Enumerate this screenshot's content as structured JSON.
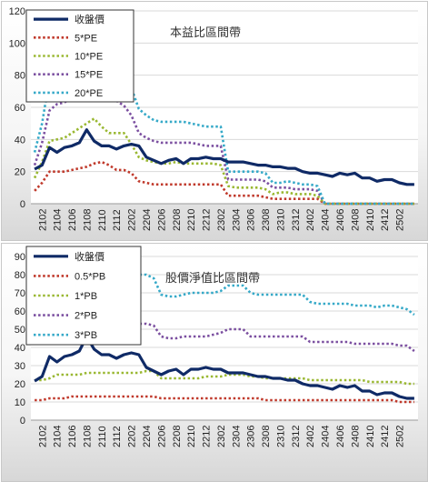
{
  "chart_data": [
    {
      "type": "line",
      "title": "本益比區間帶",
      "xlabel": "",
      "ylabel": "",
      "ylim": [
        0,
        120
      ],
      "yticks": [
        0,
        20,
        40,
        60,
        80,
        100,
        120
      ],
      "grid": true,
      "legend": "top-left",
      "x": [
        "2101",
        "2102",
        "2103",
        "2104",
        "2105",
        "2106",
        "2107",
        "2108",
        "2109",
        "2110",
        "2111",
        "2112",
        "2201",
        "2202",
        "2203",
        "2204",
        "2205",
        "2206",
        "2207",
        "2208",
        "2209",
        "2210",
        "2211",
        "2212",
        "2301",
        "2302",
        "2303",
        "2304",
        "2305",
        "2306",
        "2307",
        "2308",
        "2309",
        "2310",
        "2311",
        "2312",
        "2401",
        "2402",
        "2403",
        "2404",
        "2405",
        "2406",
        "2407",
        "2408",
        "2409",
        "2410",
        "2411",
        "2412",
        "2501",
        "2502",
        "2503",
        "2504"
      ],
      "xticks": [
        "2102",
        "2104",
        "2106",
        "2108",
        "2110",
        "2112",
        "2202",
        "2204",
        "2206",
        "2208",
        "2210",
        "2212",
        "2302",
        "2304",
        "2306",
        "2308",
        "2310",
        "2312",
        "2402",
        "2404",
        "2406",
        "2408",
        "2410",
        "2412",
        "2502"
      ],
      "series": [
        {
          "name": "收盤價",
          "color": "#0f2a66",
          "style": "solid",
          "values": [
            21.5,
            24,
            35,
            32,
            35,
            36,
            38,
            46,
            39,
            36,
            36,
            34,
            36,
            37,
            36,
            29,
            27,
            25,
            27,
            28,
            25,
            28,
            28,
            29,
            28,
            28,
            26,
            26,
            26,
            25,
            24,
            24,
            23,
            23,
            22,
            22,
            20,
            19,
            19,
            18,
            17,
            19,
            18,
            19,
            16,
            16,
            14,
            15,
            15,
            13,
            12,
            12
          ]
        },
        {
          "name": "5*PE",
          "color": "#c0392b",
          "style": "dotted",
          "values": [
            8,
            13,
            20,
            20,
            20,
            21,
            22,
            23,
            25,
            26,
            24,
            21,
            21,
            19,
            14,
            13,
            12,
            12,
            12,
            12,
            12,
            12,
            12,
            12,
            12,
            12,
            5,
            5,
            5,
            5,
            5,
            4,
            3,
            3,
            3,
            3,
            3,
            3,
            3,
            0,
            0,
            0,
            0,
            0,
            0,
            0,
            0,
            0,
            0,
            0,
            0,
            0
          ]
        },
        {
          "name": "10*PE",
          "color": "#9ab832",
          "style": "dotted",
          "values": [
            16,
            26,
            39,
            40,
            41,
            44,
            47,
            50,
            53,
            48,
            44,
            44,
            44,
            37,
            29,
            27,
            26,
            25,
            25,
            26,
            25,
            25,
            25,
            25,
            25,
            24,
            11,
            10,
            10,
            10,
            10,
            9,
            6,
            7,
            7,
            6,
            6,
            6,
            5,
            0,
            0,
            0,
            0,
            0,
            0,
            0,
            0,
            0,
            0,
            0,
            0,
            0
          ]
        },
        {
          "name": "15*PE",
          "color": "#7b4fa0",
          "style": "dotted",
          "values": [
            24,
            38,
            58,
            62,
            63,
            66,
            69,
            68,
            67,
            65,
            65,
            64,
            61,
            55,
            44,
            41,
            39,
            38,
            38,
            38,
            38,
            38,
            37,
            36,
            36,
            36,
            15,
            15,
            15,
            15,
            15,
            14,
            10,
            10,
            10,
            9,
            9,
            9,
            8,
            0,
            0,
            0,
            0,
            0,
            0,
            0,
            0,
            0,
            0,
            0,
            0,
            0
          ]
        },
        {
          "name": "20*PE",
          "color": "#35a9c8",
          "style": "dotted",
          "values": [
            32,
            50,
            78,
            82,
            84,
            88,
            91,
            89,
            89,
            87,
            87,
            87,
            82,
            72,
            59,
            55,
            52,
            51,
            51,
            51,
            51,
            50,
            49,
            48,
            48,
            48,
            20,
            20,
            20,
            20,
            20,
            19,
            13,
            13,
            14,
            13,
            12,
            12,
            11,
            0,
            0,
            0,
            0,
            0,
            0,
            0,
            0,
            0,
            0,
            0,
            0,
            0
          ]
        }
      ]
    },
    {
      "type": "line",
      "title": "股價淨值比區間帶",
      "xlabel": "",
      "ylabel": "",
      "ylim": [
        0,
        90
      ],
      "yticks": [
        0,
        10,
        20,
        30,
        40,
        50,
        60,
        70,
        80,
        90
      ],
      "grid": true,
      "legend": "top-left",
      "x": [
        "2101",
        "2102",
        "2103",
        "2104",
        "2105",
        "2106",
        "2107",
        "2108",
        "2109",
        "2110",
        "2111",
        "2112",
        "2201",
        "2202",
        "2203",
        "2204",
        "2205",
        "2206",
        "2207",
        "2208",
        "2209",
        "2210",
        "2211",
        "2212",
        "2301",
        "2302",
        "2303",
        "2304",
        "2305",
        "2306",
        "2307",
        "2308",
        "2309",
        "2310",
        "2311",
        "2312",
        "2401",
        "2402",
        "2403",
        "2404",
        "2405",
        "2406",
        "2407",
        "2408",
        "2409",
        "2410",
        "2411",
        "2412",
        "2501",
        "2502",
        "2503",
        "2504"
      ],
      "xticks": [
        "2102",
        "2104",
        "2106",
        "2108",
        "2110",
        "2112",
        "2202",
        "2204",
        "2206",
        "2208",
        "2210",
        "2212",
        "2302",
        "2304",
        "2306",
        "2308",
        "2310",
        "2312",
        "2402",
        "2404",
        "2406",
        "2408",
        "2410",
        "2412",
        "2502"
      ],
      "series": [
        {
          "name": "收盤價",
          "color": "#0f2a66",
          "style": "solid",
          "values": [
            21.5,
            24,
            35,
            32,
            35,
            36,
            38,
            46,
            39,
            36,
            36,
            34,
            36,
            37,
            36,
            29,
            27,
            25,
            27,
            28,
            25,
            28,
            28,
            29,
            28,
            28,
            26,
            26,
            26,
            25,
            24,
            24,
            23,
            23,
            22,
            22,
            20,
            19,
            19,
            18,
            17,
            19,
            18,
            19,
            16,
            16,
            14,
            15,
            15,
            13,
            12,
            12
          ]
        },
        {
          "name": "0.5*PB",
          "color": "#c0392b",
          "style": "dotted",
          "values": [
            11,
            11,
            12,
            12,
            12,
            13,
            13,
            13,
            13,
            13,
            13,
            13,
            13,
            13,
            13,
            13,
            13,
            12,
            12,
            12,
            12,
            12,
            12,
            12,
            12,
            12,
            12,
            12,
            12,
            12,
            12,
            11,
            11,
            11,
            11,
            11,
            11,
            11,
            11,
            11,
            11,
            11,
            11,
            11,
            11,
            11,
            11,
            11,
            11,
            10,
            10,
            10
          ]
        },
        {
          "name": "1*PB",
          "color": "#9ab832",
          "style": "dotted",
          "values": [
            22,
            22,
            23,
            25,
            25,
            25,
            25,
            26,
            26,
            26,
            26,
            26,
            26,
            26,
            26,
            27,
            27,
            23,
            23,
            23,
            23,
            23,
            23,
            24,
            24,
            24,
            25,
            25,
            25,
            24,
            24,
            23,
            23,
            23,
            23,
            23,
            23,
            22,
            22,
            22,
            22,
            22,
            22,
            22,
            22,
            21,
            21,
            21,
            21,
            21,
            20,
            20
          ]
        },
        {
          "name": "2*PB",
          "color": "#7b4fa0",
          "style": "dotted",
          "values": [
            43,
            45,
            45,
            48,
            52,
            52,
            51,
            51,
            51,
            51,
            51,
            51,
            52,
            52,
            53,
            53,
            52,
            46,
            45,
            45,
            46,
            46,
            46,
            46,
            47,
            48,
            50,
            50,
            50,
            46,
            46,
            46,
            46,
            46,
            46,
            46,
            46,
            43,
            43,
            43,
            43,
            43,
            43,
            42,
            42,
            42,
            42,
            42,
            42,
            41,
            41,
            38
          ]
        },
        {
          "name": "3*PB",
          "color": "#35a9c8",
          "style": "dotted",
          "values": [
            64,
            68,
            68,
            72,
            77,
            77,
            77,
            77,
            77,
            77,
            77,
            77,
            78,
            79,
            80,
            80,
            78,
            69,
            68,
            68,
            69,
            70,
            70,
            70,
            70,
            71,
            74,
            74,
            74,
            70,
            69,
            69,
            69,
            69,
            69,
            69,
            69,
            65,
            64,
            64,
            64,
            64,
            64,
            63,
            63,
            63,
            62,
            63,
            63,
            62,
            61,
            58
          ]
        }
      ]
    }
  ]
}
